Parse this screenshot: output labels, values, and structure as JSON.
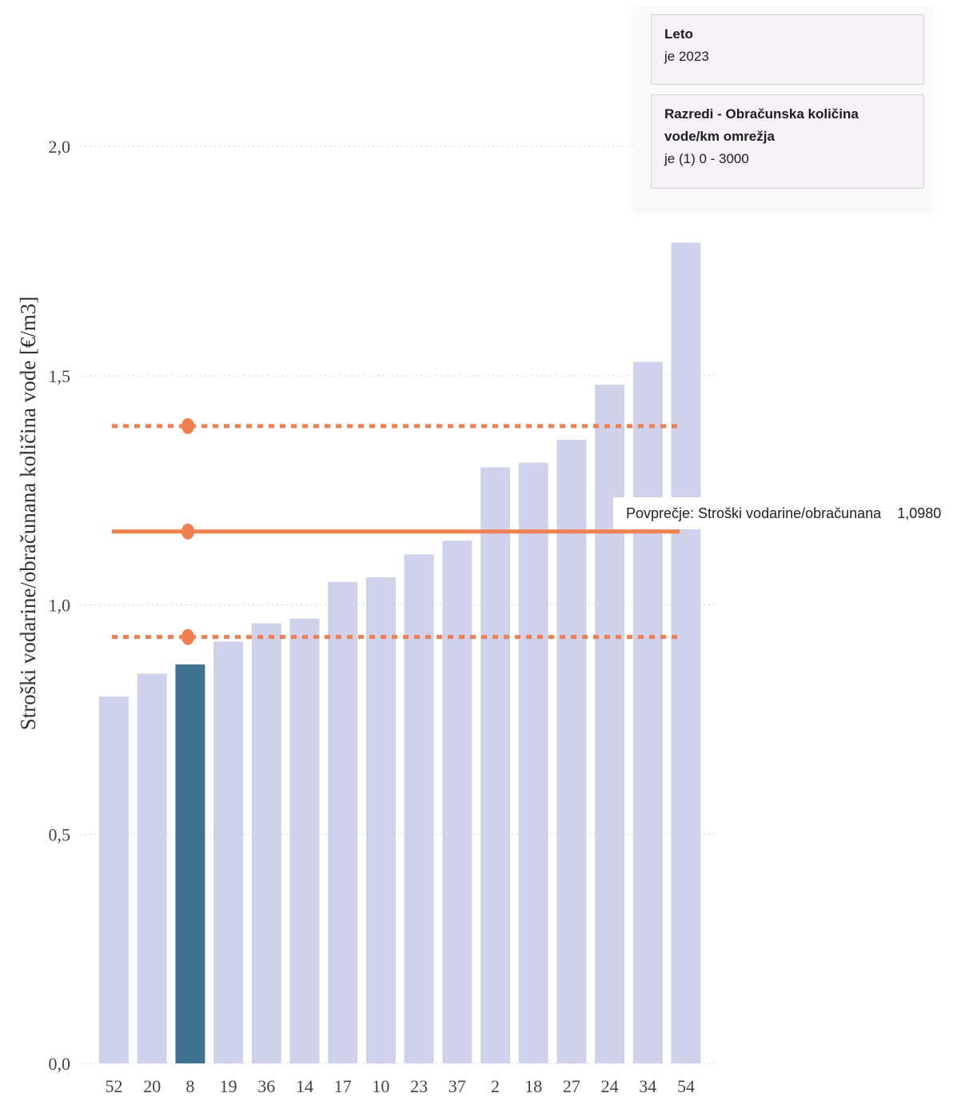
{
  "filters": {
    "leto": {
      "title": "Leto",
      "value": "je 2023"
    },
    "razredi": {
      "title": "Razredi - Obračunska količina vode/km omrežja",
      "value": "je (1) 0 - 3000"
    }
  },
  "tooltip": {
    "label": "Povprečje: Stroški vodarine/obračunana",
    "value": "1,0980"
  },
  "colors": {
    "bar": "#cfd2ea",
    "bar_highlight": "#3f7191",
    "reference_line": "#f08050",
    "grid": "#d8d8d8",
    "axis_text": "#444444"
  },
  "chart_data": {
    "type": "bar",
    "ylabel": "Stroški vodarine/obračunana količina vode [€/m3]",
    "ylim": [
      0,
      2.0
    ],
    "yticks": [
      "0,0",
      "0,5",
      "1,0",
      "1,5",
      "2,0"
    ],
    "grid": true,
    "categories": [
      "52",
      "20",
      "8",
      "19",
      "36",
      "14",
      "17",
      "10",
      "23",
      "37",
      "2",
      "18",
      "27",
      "24",
      "34",
      "54"
    ],
    "values": [
      0.8,
      0.85,
      0.87,
      0.92,
      0.96,
      0.97,
      1.05,
      1.06,
      1.11,
      1.14,
      1.3,
      1.31,
      1.36,
      1.48,
      1.53,
      1.79
    ],
    "highlighted_category": "8",
    "reference_lines": [
      {
        "name": "upper",
        "value": 1.39,
        "style": "dotted"
      },
      {
        "name": "average",
        "value": 1.16,
        "style": "solid"
      },
      {
        "name": "lower",
        "value": 0.93,
        "style": "dotted"
      }
    ]
  }
}
